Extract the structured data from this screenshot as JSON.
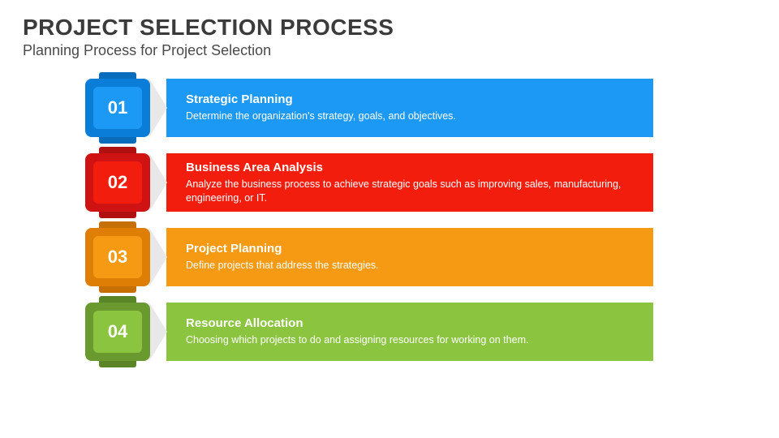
{
  "header": {
    "title": "PROJECT SELECTION PROCESS",
    "subtitle": "Planning Process for Project Selection"
  },
  "steps": [
    {
      "num": "01",
      "title": "Strategic Planning",
      "desc": "Determine the organization's strategy, goals, and objectives.",
      "badge_outer": "#0a7dd8",
      "badge_inner": "#1c99f4",
      "tab": "#0a6dbb",
      "arrow": "#e8e8e8",
      "bar": "#1c99f4"
    },
    {
      "num": "02",
      "title": "Business Area Analysis",
      "desc": "Analyze the business process to achieve strategic goals such as improving sales, manufacturing, engineering, or IT.",
      "badge_outer": "#cf1312",
      "badge_inner": "#f21d0d",
      "tab": "#b01010",
      "arrow": "#e8e8e8",
      "bar": "#f21d0d"
    },
    {
      "num": "03",
      "title": "Project Planning",
      "desc": "Define projects that address the strategies.",
      "badge_outer": "#de7e04",
      "badge_inner": "#f59a12",
      "tab": "#c66f04",
      "arrow": "#e8e8e8",
      "bar": "#f59a12"
    },
    {
      "num": "04",
      "title": "Resource Allocation",
      "desc": "Choosing which projects to do and assigning resources for working on them.",
      "badge_outer": "#6a9a2f",
      "badge_inner": "#8bc53f",
      "tab": "#5a8527",
      "arrow": "#e8e8e8",
      "bar": "#8bc53f"
    }
  ]
}
